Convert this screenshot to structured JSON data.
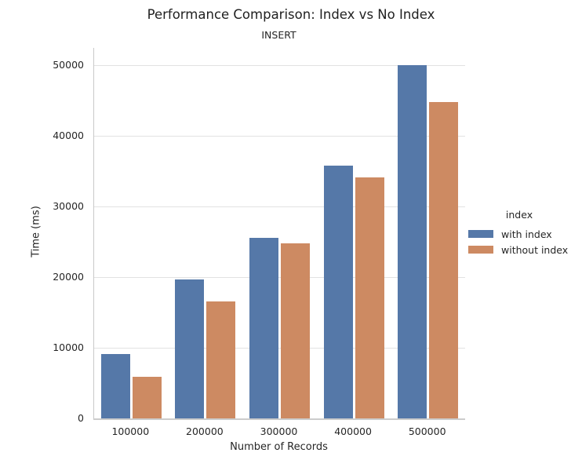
{
  "chart_data": {
    "type": "bar",
    "title": "Performance Comparison: Index vs No Index",
    "subtitle": "INSERT",
    "xlabel": "Number of Records",
    "ylabel": "Time (ms)",
    "categories": [
      "100000",
      "200000",
      "300000",
      "400000",
      "500000"
    ],
    "series": [
      {
        "name": "with index",
        "color": "#5578a8",
        "values": [
          9100,
          19700,
          25500,
          35800,
          50000
        ]
      },
      {
        "name": "without index",
        "color": "#cd8a62",
        "values": [
          5900,
          16500,
          24800,
          34100,
          44700
        ]
      }
    ],
    "ylim": [
      0,
      52400
    ],
    "yticks": [
      0,
      10000,
      20000,
      30000,
      40000,
      50000
    ],
    "grid": "horizontal",
    "gridline_color": "#e2e2e2",
    "legend": {
      "title": "index",
      "position": "right"
    }
  }
}
